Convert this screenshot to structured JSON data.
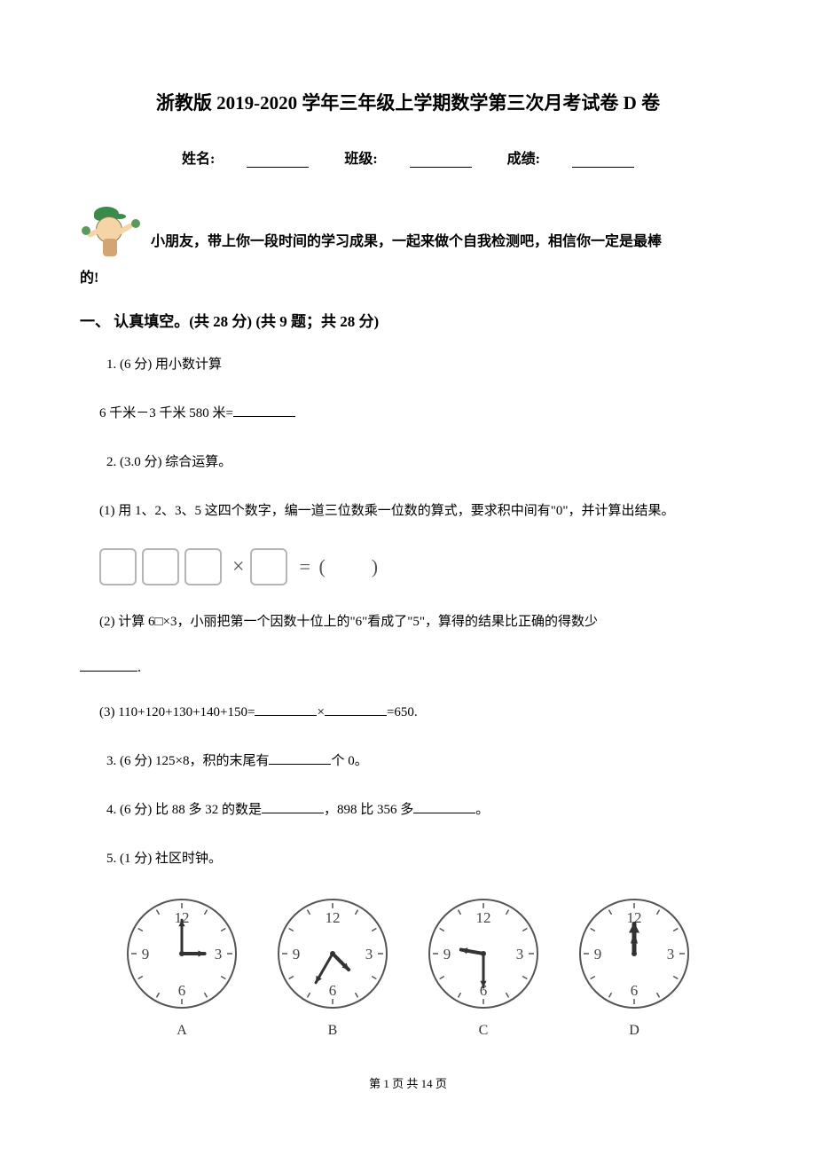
{
  "title": "浙教版 2019-2020 学年三年级上学期数学第三次月考试卷 D 卷",
  "header": {
    "name_label": "姓名:",
    "class_label": "班级:",
    "score_label": "成绩:"
  },
  "intro": {
    "line1": " 小朋友，带上你一段时间的学习成果，一起来做个自我检测吧，相信你一定是最棒",
    "line2": "的!"
  },
  "section1": {
    "heading": "一、 认真填空。(共 28 分)  (共 9 题；共 28 分)"
  },
  "q1": {
    "stem": "1.  (6 分) 用小数计算",
    "body": "6 千米－3 千米 580 米="
  },
  "q2": {
    "stem": "2.  (3.0 分) 综合运算。",
    "p1": "(1) 用 1、2、3、5 这四个数字，编一道三位数乘一位数的算式，要求积中间有\"0\"，并计算出结果。",
    "p2_a": "(2) 计算 6□×3，小丽把第一个因数十位上的\"6\"看成了\"5\"，算得的结果比正确的得数少",
    "p2_b": ".",
    "p3_a": "(3) 110+120+130+140+150=",
    "p3_b": "×",
    "p3_c": "=650."
  },
  "q3": {
    "a": "3.  (6 分) 125×8，积的末尾有",
    "b": "个 0。"
  },
  "q4": {
    "a": "4.  (6 分) 比 88 多 32 的数是",
    "b": "，898 比 356 多",
    "c": "。"
  },
  "q5": {
    "stem": "5.  (1 分) 社区时钟。"
  },
  "clocks": {
    "num12": "12",
    "num3": "3",
    "num6": "6",
    "num9": "9",
    "labels": [
      "A",
      "B",
      "C",
      "D"
    ],
    "hands": [
      {
        "hour_angle": 90,
        "minute_angle": 0
      },
      {
        "hour_angle": 135,
        "minute_angle": 210
      },
      {
        "hour_angle": 280,
        "minute_angle": 180
      },
      {
        "hour_angle": 0,
        "minute_angle": 180,
        "overlap": true
      }
    ],
    "face_color": "#ffffff",
    "border_color": "#555555",
    "number_color": "#444444",
    "hand_color": "#333333",
    "size": 130
  },
  "footer": "第 1 页 共 14 页"
}
